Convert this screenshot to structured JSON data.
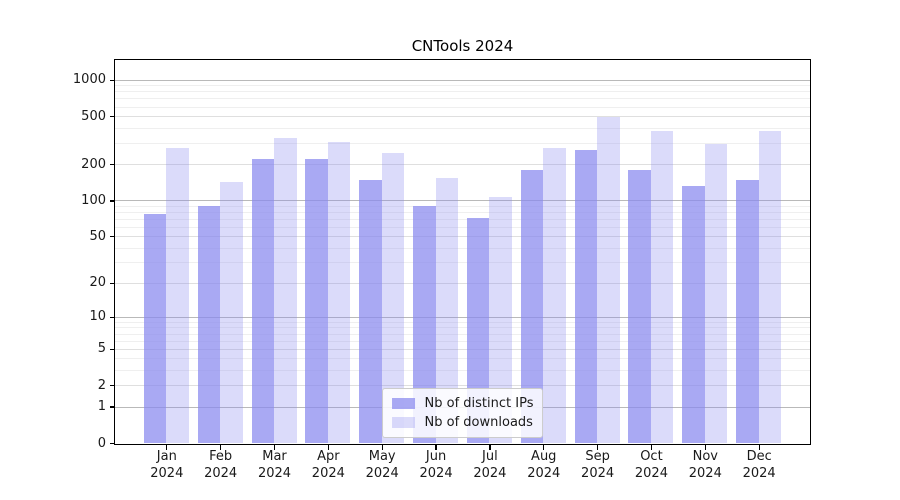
{
  "chart_data": {
    "type": "bar",
    "title": "CNTools 2024",
    "xlabel": "",
    "ylabel": "",
    "categories": [
      "Jan",
      "Feb",
      "Mar",
      "Apr",
      "May",
      "Jun",
      "Jul",
      "Aug",
      "Sep",
      "Oct",
      "Nov",
      "Dec"
    ],
    "category_year": "2024",
    "series": [
      {
        "name": "Nb of distinct IPs",
        "values": [
          77,
          90,
          221,
          221,
          149,
          90,
          71,
          180,
          260,
          180,
          132,
          149
        ]
      },
      {
        "name": "Nb of downloads",
        "values": [
          271,
          142,
          330,
          305,
          248,
          154,
          107,
          271,
          488,
          377,
          296,
          380
        ]
      }
    ],
    "yscale": "log1p",
    "ylim": [
      0,
      1470
    ],
    "y_ticks": [
      0,
      1,
      2,
      5,
      10,
      20,
      50,
      100,
      200,
      500,
      1000
    ],
    "y_tick_labels": [
      "0",
      "1",
      "2",
      "5",
      "10",
      "20",
      "50",
      "100",
      "200",
      "500",
      "1000"
    ],
    "y_minor_ticks": [
      3,
      4,
      6,
      7,
      8,
      9,
      30,
      40,
      60,
      70,
      80,
      90,
      300,
      400,
      600,
      700,
      800,
      900
    ],
    "grid": "horizontal",
    "legend_position": "lower center"
  },
  "colors": {
    "bar_base": "#8888ee",
    "series_alpha": [
      0.72,
      0.3
    ],
    "grid_decade": "#b9b9b9",
    "grid_sub": "#dfdfdf",
    "grid_minor": "#efefef",
    "spine": "#000000",
    "text": "#1a1a1a",
    "legend_border": "#cccccc",
    "legend_bg": "rgba(255,255,255,0.85)"
  }
}
